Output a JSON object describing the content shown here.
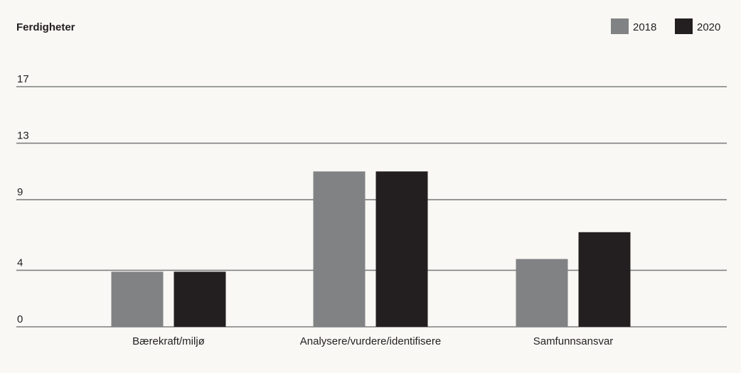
{
  "chart_data": {
    "type": "bar",
    "title": "Ferdigheter",
    "xlabel": "",
    "ylabel": "",
    "categories": [
      "Bærekraft/miljø",
      "Analysere/vurdere/identifisere",
      "Samfunnsansvar"
    ],
    "series": [
      {
        "name": "2018",
        "values": [
          3.9,
          11.0,
          4.8
        ],
        "color": "#818284"
      },
      {
        "name": "2020",
        "values": [
          3.9,
          11.0,
          6.7
        ],
        "color": "#231f20"
      }
    ],
    "yticks": [
      0,
      4,
      9,
      13,
      17
    ],
    "ylim": [
      0,
      17
    ],
    "grid": true,
    "legend_position": "top-right"
  }
}
